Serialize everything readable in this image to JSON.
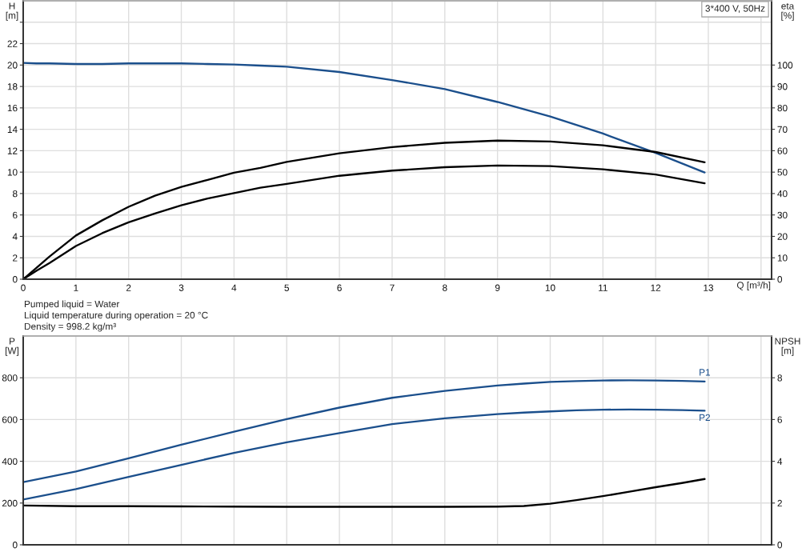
{
  "chart_data": [
    {
      "type": "line",
      "xlabel": "Q [m³/h]",
      "ylabel": "H [m]",
      "y2label": "eta [%]",
      "annotations": [
        "3*400 V, 50Hz"
      ],
      "x": [
        0,
        0.25,
        0.5,
        1,
        1.5,
        2,
        2.5,
        3,
        3.5,
        4,
        4.5,
        5,
        6,
        7,
        8,
        9,
        10,
        11,
        12,
        12.93
      ],
      "xlim": [
        0,
        14.2
      ],
      "xticks": [
        0,
        1,
        2,
        3,
        4,
        5,
        6,
        7,
        8,
        9,
        10,
        11,
        12,
        13,
        {
          "value": 14,
          "label": null
        }
      ],
      "ylim": [
        0,
        26
      ],
      "yticks": [
        0,
        2,
        4,
        6,
        8,
        10,
        12,
        14,
        16,
        18,
        20,
        22,
        {
          "value": 24,
          "label": null
        }
      ],
      "y2lim": [
        0,
        130
      ],
      "y2ticks": [
        0,
        10,
        20,
        30,
        40,
        50,
        60,
        70,
        80,
        90,
        100
      ],
      "grid": true,
      "series": [
        {
          "color": "#1b4f8c",
          "values": [
            20.2,
            20.15,
            20.15,
            20.1,
            20.1,
            20.15,
            20.15,
            20.15,
            20.1,
            20.05,
            19.95,
            19.85,
            19.35,
            18.6,
            17.75,
            16.55,
            15.2,
            13.6,
            11.8,
            9.97
          ]
        },
        {
          "color": "#000000",
          "axis": "y2",
          "values": [
            0,
            5.3,
            10.6,
            20.4,
            27.5,
            33.8,
            39,
            43.1,
            46.4,
            49.7,
            52,
            54.8,
            58.8,
            61.7,
            63.7,
            64.7,
            64.3,
            62.5,
            59.4,
            54.6
          ]
        },
        {
          "color": "#000000",
          "axis": "y2",
          "values": [
            0,
            3.9,
            7.6,
            15.5,
            21.5,
            26.6,
            30.7,
            34.5,
            37.7,
            40.2,
            42.7,
            44.5,
            48.3,
            50.7,
            52.3,
            53.1,
            52.8,
            51.3,
            48.9,
            44.8
          ]
        }
      ]
    },
    {
      "type": "line",
      "ylabel": "P [W]",
      "y2label": "NPSH [m]",
      "annotations": [
        "Pumped liquid = Water",
        "Liquid temperature during operation = 20 °C",
        "Density = 998.2 kg/m³"
      ],
      "x": [
        0,
        1,
        2,
        3,
        4,
        5,
        6,
        7,
        8,
        9,
        9.5,
        10,
        10.5,
        11,
        11.5,
        12,
        12.5,
        12.93
      ],
      "xlim": [
        0,
        14.2
      ],
      "xticks": [
        0,
        1,
        2,
        3,
        4,
        5,
        6,
        7,
        8,
        9,
        10,
        11,
        12,
        13,
        14
      ],
      "ylim": [
        0,
        1000
      ],
      "yticks": [
        0,
        200,
        400,
        600,
        800
      ],
      "y2lim": [
        0,
        10
      ],
      "y2ticks": [
        0,
        2,
        4,
        6,
        8
      ],
      "tick_labels": "y",
      "grid": true,
      "series": [
        {
          "name": "P1",
          "color": "#1b4f8c",
          "values": [
            300,
            351,
            414,
            479,
            542,
            602,
            657,
            704,
            737,
            763,
            772,
            780,
            784,
            787,
            788,
            787,
            785,
            782
          ]
        },
        {
          "name": "P2",
          "color": "#1b4f8c",
          "values": [
            217,
            267,
            325,
            383,
            440,
            491,
            535,
            578,
            606,
            626,
            633,
            639,
            644,
            647,
            648,
            647,
            645,
            642
          ]
        },
        {
          "color": "#000000",
          "axis": "y2",
          "values": [
            1.88,
            1.85,
            1.85,
            1.84,
            1.83,
            1.82,
            1.82,
            1.82,
            1.82,
            1.83,
            1.86,
            1.97,
            2.14,
            2.33,
            2.54,
            2.76,
            2.96,
            3.15
          ]
        }
      ]
    }
  ]
}
